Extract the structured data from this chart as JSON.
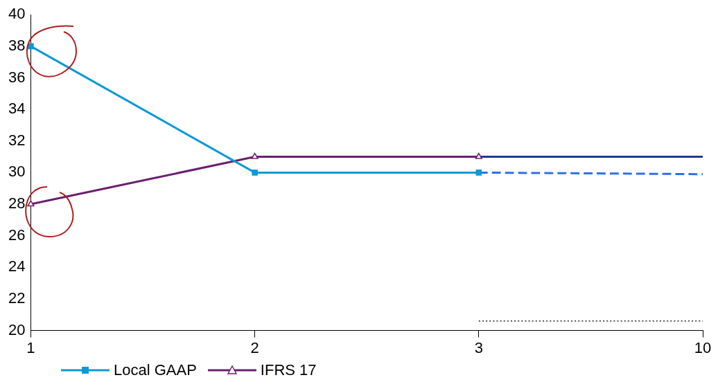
{
  "chart_data": {
    "type": "line",
    "categories": [
      "1",
      "2",
      "3",
      "10"
    ],
    "ylim": [
      20,
      40
    ],
    "yticks": [
      20,
      22,
      24,
      26,
      28,
      30,
      32,
      34,
      36,
      38,
      40
    ],
    "grid": false,
    "legend": "bottom left",
    "series": [
      {
        "name": "Local GAAP",
        "color": "#0c9ad6",
        "marker": "square",
        "values": [
          38,
          30,
          30,
          null
        ]
      },
      {
        "name": "IFRS 17",
        "color": "#6b1f6f",
        "marker": "triangle",
        "values": [
          28,
          31,
          31,
          null
        ]
      },
      {
        "color": "#2f6fe8",
        "marker": "none",
        "line_style": "dashed",
        "values": [
          null,
          null,
          30,
          29.9
        ]
      },
      {
        "color": "#1f3a8f",
        "marker": "none",
        "values": [
          null,
          null,
          31,
          31
        ]
      },
      {
        "color": "#000000",
        "marker": "none",
        "line_style": "dotted",
        "values": [
          null,
          null,
          20.6,
          20.6
        ]
      }
    ]
  }
}
